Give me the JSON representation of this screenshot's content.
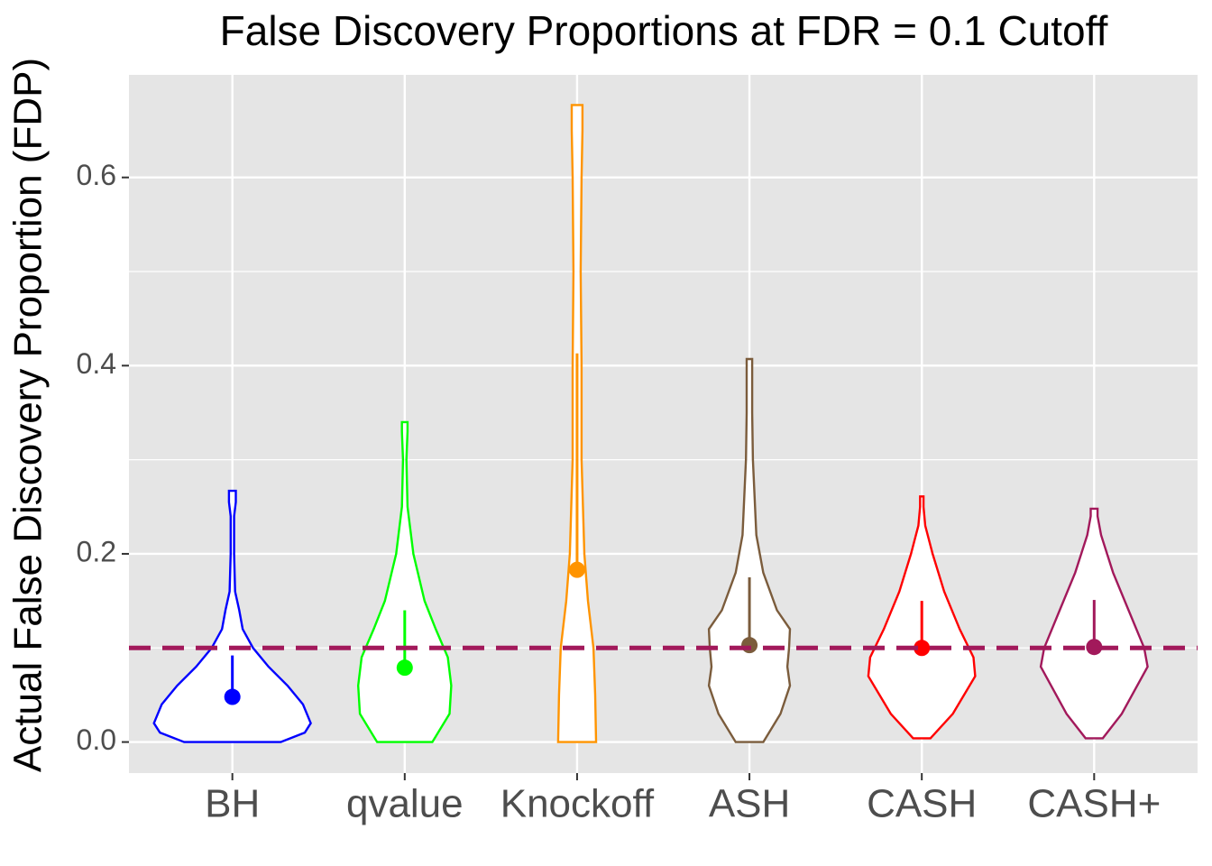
{
  "chart_data": {
    "type": "violin",
    "title": "False Discovery Proportions at FDR = 0.1 Cutoff",
    "ylabel": "Actual False Discovery Proportion (FDP)",
    "categories": [
      "BH",
      "qvalue",
      "Knockoff",
      "ASH",
      "CASH",
      "CASH+"
    ],
    "ylim": [
      -0.033,
      0.709
    ],
    "yticks": [
      {
        "value": 0,
        "label": "0.0"
      },
      0.2,
      0.4,
      0.6
    ],
    "minor_yticks": [
      0.1,
      0.3,
      0.5
    ],
    "grid": true,
    "reference_line": 0.1,
    "reference_color": "#a2195b",
    "violins": [
      {
        "color": "#0000ff",
        "mean": 0.048,
        "upper": 0.092,
        "density_y": [
          0,
          0.01,
          0.02,
          0.04,
          0.06,
          0.08,
          0.1,
          0.12,
          0.14,
          0.16,
          0.2,
          0.24,
          0.255,
          0.267
        ],
        "density_width": [
          0.28,
          0.42,
          0.455,
          0.41,
          0.32,
          0.21,
          0.12,
          0.06,
          0.04,
          0.016,
          0.01,
          0.01,
          0.02,
          0.02
        ]
      },
      {
        "color": "#00ff00",
        "mean": 0.079,
        "upper": 0.14,
        "density_y": [
          0,
          0.03,
          0.06,
          0.09,
          0.12,
          0.15,
          0.2,
          0.25,
          0.3,
          0.33,
          0.34
        ],
        "density_width": [
          0.16,
          0.26,
          0.27,
          0.25,
          0.18,
          0.115,
          0.05,
          0.016,
          0.01,
          0.016,
          0.016
        ]
      },
      {
        "color": "#ff9400",
        "mean": 0.183,
        "upper": 0.413,
        "density_y": [
          0,
          0.05,
          0.1,
          0.15,
          0.2,
          0.3,
          0.4,
          0.5,
          0.6,
          0.65,
          0.677
        ],
        "density_width": [
          0.11,
          0.105,
          0.095,
          0.063,
          0.042,
          0.026,
          0.026,
          0.021,
          0.026,
          0.031,
          0.031
        ]
      },
      {
        "color": "#7b5c3c",
        "mean": 0.103,
        "upper": 0.175,
        "density_y": [
          0,
          0.03,
          0.06,
          0.08,
          0.1,
          0.12,
          0.14,
          0.18,
          0.22,
          0.3,
          0.35,
          0.407
        ],
        "density_width": [
          0.08,
          0.18,
          0.235,
          0.22,
          0.23,
          0.235,
          0.16,
          0.08,
          0.04,
          0.02,
          0.016,
          0.016
        ]
      },
      {
        "color": "#ff0000",
        "mean": 0.1,
        "upper": 0.15,
        "density_y": [
          0.004,
          0.03,
          0.07,
          0.09,
          0.12,
          0.16,
          0.2,
          0.23,
          0.25,
          0.261
        ],
        "density_width": [
          0.05,
          0.18,
          0.31,
          0.3,
          0.22,
          0.13,
          0.063,
          0.02,
          0.01,
          0.01
        ]
      },
      {
        "color": "#a2195b",
        "mean": 0.101,
        "upper": 0.151,
        "density_y": [
          0.004,
          0.03,
          0.08,
          0.1,
          0.14,
          0.18,
          0.22,
          0.24,
          0.248
        ],
        "density_width": [
          0.05,
          0.16,
          0.31,
          0.29,
          0.2,
          0.11,
          0.04,
          0.02,
          0.02
        ]
      }
    ]
  }
}
